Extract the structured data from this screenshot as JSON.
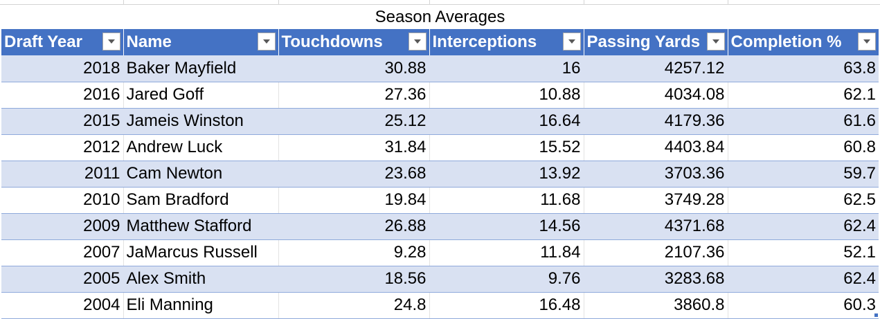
{
  "table": {
    "title": "Season Averages",
    "columns": [
      "Draft Year",
      "Name",
      "Touchdowns",
      "Interceptions",
      "Passing Yards",
      "Completion %"
    ],
    "filter_icon": "dropdown-arrow-icon",
    "header_color": "#4472c4",
    "band_color": "#d9e1f2",
    "rows": [
      [
        "2018",
        "Baker Mayfield",
        "30.88",
        "16",
        "4257.12",
        "63.8"
      ],
      [
        "2016",
        "Jared Goff",
        "27.36",
        "10.88",
        "4034.08",
        "62.1"
      ],
      [
        "2015",
        "Jameis Winston",
        "25.12",
        "16.64",
        "4179.36",
        "61.6"
      ],
      [
        "2012",
        "Andrew Luck",
        "31.84",
        "15.52",
        "4403.84",
        "60.8"
      ],
      [
        "2011",
        "Cam Newton",
        "23.68",
        "13.92",
        "3703.36",
        "59.7"
      ],
      [
        "2010",
        "Sam Bradford",
        "19.84",
        "11.68",
        "3749.28",
        "62.5"
      ],
      [
        "2009",
        "Matthew Stafford",
        "26.88",
        "14.56",
        "4371.68",
        "62.4"
      ],
      [
        "2007",
        "JaMarcus Russell",
        "9.28",
        "11.84",
        "2107.36",
        "52.1"
      ],
      [
        "2005",
        "Alex Smith",
        "18.56",
        "9.76",
        "3283.68",
        "62.4"
      ],
      [
        "2004",
        "Eli Manning",
        "24.8",
        "16.48",
        "3860.8",
        "60.3"
      ]
    ]
  }
}
